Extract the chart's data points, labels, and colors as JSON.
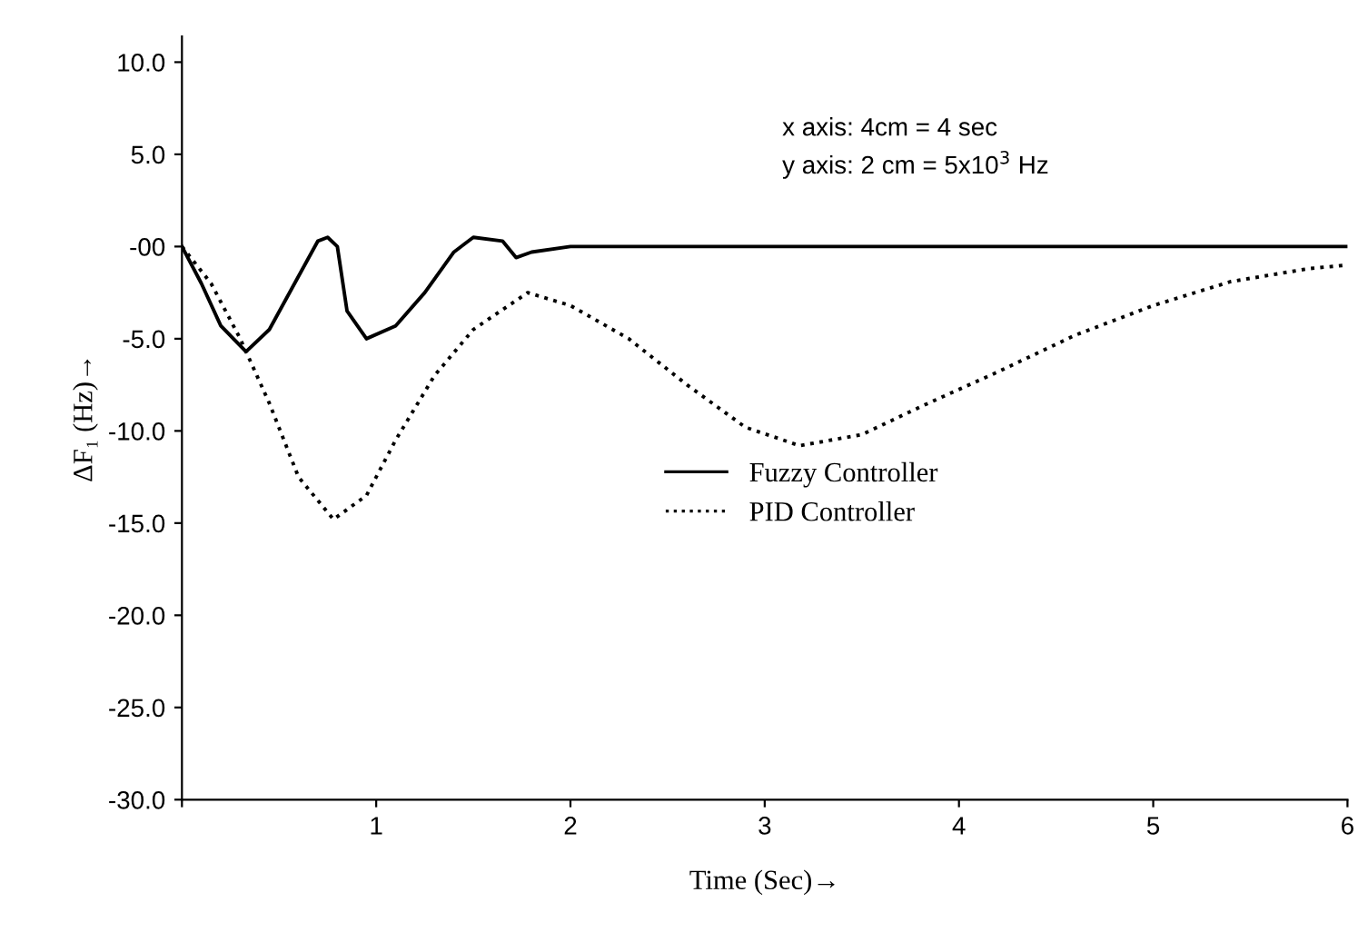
{
  "chart_data": {
    "type": "line",
    "xlabel": "Time (Sec)→",
    "ylabel": "ΔF₁ (Hz)→",
    "annotations": [
      "x axis: 4cm = 4 sec",
      "y axis: 2 cm = 5x10$^{3}$ Hz"
    ],
    "xlim": [
      0,
      6
    ],
    "xticks": [
      {
        "value": 0,
        "label": null
      },
      1,
      2,
      3,
      4,
      5,
      6
    ],
    "ylim": [
      -30,
      11.4
    ],
    "yticks": [
      {
        "value": 10,
        "label": "10.0"
      },
      {
        "value": 5,
        "label": "5.0"
      },
      {
        "value": 0,
        "label": "-00"
      },
      {
        "value": -5,
        "label": "-5.0"
      },
      {
        "value": -10,
        "label": "-10.0"
      },
      {
        "value": -15,
        "label": "-15.0"
      },
      {
        "value": -20,
        "label": "-20.0"
      },
      {
        "value": -25,
        "label": "-25.0"
      },
      {
        "value": -30,
        "label": "-30.0"
      }
    ],
    "grid": false,
    "legend": "right",
    "marker": "none",
    "series": [
      {
        "name": "Fuzzy Controller",
        "color": "#000000",
        "line_style": "solid",
        "x": [
          0,
          0.1,
          0.2,
          0.33,
          0.45,
          0.58,
          0.7,
          0.75,
          0.8,
          0.85,
          0.95,
          1.1,
          1.25,
          1.4,
          1.5,
          1.65,
          1.72,
          1.8,
          2.0,
          6.0
        ],
        "values": [
          0,
          -2,
          -4.3,
          -5.7,
          -4.5,
          -2,
          0.3,
          0.5,
          0,
          -3.5,
          -5,
          -4.3,
          -2.5,
          -0.3,
          0.5,
          0.3,
          -0.6,
          -0.3,
          0,
          0
        ]
      },
      {
        "name": "PID Controller",
        "color": "#000000",
        "line_style": "dotted",
        "x": [
          0,
          0.15,
          0.3,
          0.45,
          0.6,
          0.78,
          0.95,
          1.1,
          1.3,
          1.5,
          1.78,
          2.0,
          2.3,
          2.6,
          2.9,
          3.18,
          3.5,
          3.8,
          4.2,
          4.6,
          5.0,
          5.4,
          5.8,
          6.0
        ],
        "values": [
          0,
          -2,
          -5,
          -8.5,
          -12.5,
          -14.8,
          -13.5,
          -10.5,
          -7,
          -4.5,
          -2.5,
          -3.2,
          -5,
          -7.5,
          -9.8,
          -10.8,
          -10.2,
          -8.7,
          -6.8,
          -4.8,
          -3.2,
          -1.9,
          -1.2,
          -1.0
        ]
      }
    ]
  }
}
